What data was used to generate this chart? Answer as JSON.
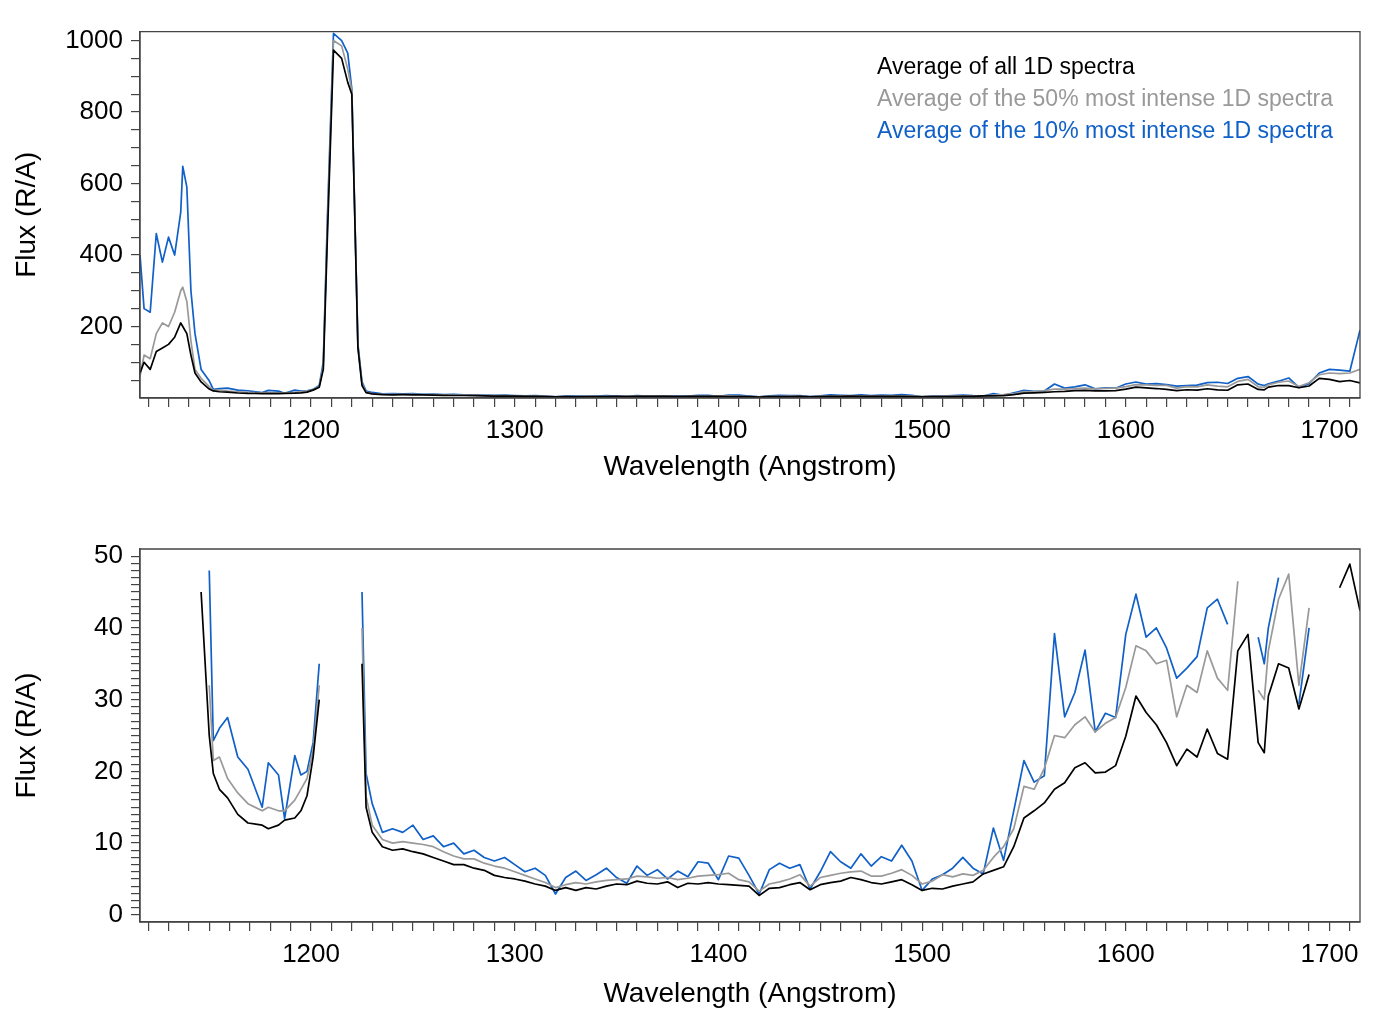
{
  "chart_data": [
    {
      "type": "line",
      "xlabel": "Wavelength (Angstrom)",
      "ylabel": "Flux (R/A)",
      "legend": "top right",
      "xlim": [
        1116,
        1715
      ],
      "ylim": [
        0,
        1025
      ],
      "xticks": [
        {
          "value": 1120,
          "label": null
        },
        {
          "value": 1130,
          "label": null
        },
        {
          "value": 1140,
          "label": null
        },
        {
          "value": 1150,
          "label": null
        },
        {
          "value": 1160,
          "label": null
        },
        {
          "value": 1170,
          "label": null
        },
        {
          "value": 1180,
          "label": null
        },
        {
          "value": 1190,
          "label": null
        },
        1200,
        {
          "value": 1210,
          "label": null
        },
        {
          "value": 1220,
          "label": null
        },
        {
          "value": 1230,
          "label": null
        },
        {
          "value": 1240,
          "label": null
        },
        {
          "value": 1250,
          "label": null
        },
        {
          "value": 1260,
          "label": null
        },
        {
          "value": 1270,
          "label": null
        },
        {
          "value": 1280,
          "label": null
        },
        {
          "value": 1290,
          "label": null
        },
        1300,
        {
          "value": 1310,
          "label": null
        },
        {
          "value": 1320,
          "label": null
        },
        {
          "value": 1330,
          "label": null
        },
        {
          "value": 1340,
          "label": null
        },
        {
          "value": 1350,
          "label": null
        },
        {
          "value": 1360,
          "label": null
        },
        {
          "value": 1370,
          "label": null
        },
        {
          "value": 1380,
          "label": null
        },
        {
          "value": 1390,
          "label": null
        },
        1400,
        {
          "value": 1410,
          "label": null
        },
        {
          "value": 1420,
          "label": null
        },
        {
          "value": 1430,
          "label": null
        },
        {
          "value": 1440,
          "label": null
        },
        {
          "value": 1450,
          "label": null
        },
        {
          "value": 1460,
          "label": null
        },
        {
          "value": 1470,
          "label": null
        },
        {
          "value": 1480,
          "label": null
        },
        {
          "value": 1490,
          "label": null
        },
        1500,
        {
          "value": 1510,
          "label": null
        },
        {
          "value": 1520,
          "label": null
        },
        {
          "value": 1530,
          "label": null
        },
        {
          "value": 1540,
          "label": null
        },
        {
          "value": 1550,
          "label": null
        },
        {
          "value": 1560,
          "label": null
        },
        {
          "value": 1570,
          "label": null
        },
        {
          "value": 1580,
          "label": null
        },
        {
          "value": 1590,
          "label": null
        },
        1600,
        {
          "value": 1610,
          "label": null
        },
        {
          "value": 1620,
          "label": null
        },
        {
          "value": 1630,
          "label": null
        },
        {
          "value": 1640,
          "label": null
        },
        {
          "value": 1650,
          "label": null
        },
        {
          "value": 1660,
          "label": null
        },
        {
          "value": 1670,
          "label": null
        },
        {
          "value": 1680,
          "label": null
        },
        {
          "value": 1690,
          "label": null
        },
        1700,
        {
          "value": 1710,
          "label": null
        }
      ],
      "yticks": [
        {
          "value": 50,
          "label": null
        },
        {
          "value": 100,
          "label": null
        },
        {
          "value": 150,
          "label": null
        },
        200,
        {
          "value": 250,
          "label": null
        },
        {
          "value": 300,
          "label": null
        },
        {
          "value": 350,
          "label": null
        },
        400,
        {
          "value": 450,
          "label": null
        },
        {
          "value": 500,
          "label": null
        },
        {
          "value": 550,
          "label": null
        },
        600,
        {
          "value": 650,
          "label": null
        },
        {
          "value": 700,
          "label": null
        },
        {
          "value": 750,
          "label": null
        },
        800,
        {
          "value": 850,
          "label": null
        },
        {
          "value": 900,
          "label": null
        },
        {
          "value": 950,
          "label": null
        },
        1000
      ],
      "x": [
        1116,
        1118,
        1121,
        1124,
        1127,
        1130,
        1133,
        1136,
        1137,
        1139,
        1141,
        1143,
        1146,
        1150,
        1152,
        1155,
        1159,
        1164,
        1169,
        1176,
        1179,
        1184,
        1187,
        1192,
        1195,
        1198,
        1201,
        1204,
        1206,
        1208,
        1211,
        1215,
        1218,
        1220,
        1223,
        1225,
        1227,
        1230,
        1235,
        1240,
        1245,
        1250,
        1255,
        1260,
        1265,
        1270,
        1275,
        1280,
        1285,
        1290,
        1295,
        1300,
        1305,
        1310,
        1315,
        1320,
        1325,
        1330,
        1335,
        1340,
        1345,
        1350,
        1355,
        1360,
        1365,
        1370,
        1375,
        1380,
        1385,
        1390,
        1395,
        1400,
        1405,
        1410,
        1415,
        1420,
        1425,
        1430,
        1435,
        1440,
        1445,
        1450,
        1455,
        1460,
        1465,
        1470,
        1475,
        1480,
        1485,
        1490,
        1495,
        1500,
        1505,
        1510,
        1515,
        1520,
        1525,
        1530,
        1535,
        1540,
        1545,
        1550,
        1555,
        1560,
        1565,
        1570,
        1575,
        1580,
        1585,
        1590,
        1595,
        1600,
        1605,
        1610,
        1615,
        1620,
        1625,
        1630,
        1635,
        1640,
        1645,
        1650,
        1655,
        1660,
        1665,
        1668,
        1670,
        1675,
        1680,
        1685,
        1690,
        1695,
        1700,
        1705,
        1710,
        1715
      ],
      "series": [
        {
          "name": "Average of all 1D spectra",
          "color": "#000000",
          "values": [
            70,
            100,
            80,
            130,
            140,
            150,
            170,
            210,
            200,
            180,
            120,
            70,
            45,
            25,
            19.7,
            17.5,
            16.3,
            14,
            12.8,
            12.5,
            12,
            12.5,
            13.2,
            13.5,
            14.5,
            16.6,
            22,
            30,
            80,
            450,
            973,
            950,
            883,
            850,
            140,
            35,
            15,
            11.5,
            9.5,
            9,
            9.2,
            8.8,
            8.5,
            8,
            7.5,
            7,
            7,
            6.5,
            6.2,
            5.5,
            5.2,
            5,
            4.7,
            4.3,
            4,
            3.4,
            3.8,
            3.4,
            3.8,
            3.6,
            4,
            4.3,
            4.2,
            4.7,
            4.4,
            4.3,
            4.6,
            3.8,
            4.4,
            4.3,
            4.5,
            4.3,
            4.2,
            4.1,
            4,
            2.7,
            3.7,
            3.8,
            4.2,
            4.5,
            3.5,
            4.2,
            4.5,
            4.7,
            5.2,
            4.9,
            4.5,
            4.3,
            4.6,
            4.9,
            4.2,
            3.4,
            3.7,
            3.6,
            4,
            4.3,
            4.6,
            5.7,
            6.2,
            6.7,
            9.5,
            13.5,
            14.5,
            15.6,
            17.5,
            18.4,
            20.5,
            21.2,
            19.8,
            19.9,
            20.8,
            24.9,
            30.5,
            28.2,
            26.5,
            24,
            20.8,
            23.1,
            22,
            25.9,
            22.5,
            21.7,
            36.8,
            39.1,
            24,
            22.6,
            30.5,
            35,
            34.4,
            28.7,
            33.5,
            55,
            52,
            45.6,
            48.9,
            42.4
          ]
        },
        {
          "name": "Average of the 50% most intense 1D spectra",
          "color": "#999999",
          "values": [
            60,
            120,
            110,
            180,
            210,
            200,
            240,
            300,
            310,
            270,
            160,
            80,
            55,
            32,
            21.5,
            22,
            19,
            17,
            15.5,
            14.5,
            15,
            14.5,
            14.5,
            16,
            17.5,
            19,
            23,
            32,
            90,
            480,
            1000,
            985,
            920,
            860,
            145,
            40,
            16.5,
            12.5,
            10.5,
            10,
            10.2,
            10,
            9.8,
            9.5,
            8.8,
            8.2,
            7.8,
            7.8,
            7.2,
            6.8,
            6.5,
            6,
            5.5,
            5,
            4.5,
            3.8,
            4.2,
            4.5,
            4.3,
            4.6,
            4.8,
            4.9,
            5,
            5.4,
            5.3,
            5.1,
            5.2,
            4.9,
            5.1,
            5.4,
            5.5,
            5.6,
            5.8,
            4.9,
            4.6,
            3.3,
            4.3,
            4.6,
            5,
            5.6,
            4,
            5.2,
            5.5,
            5.8,
            6,
            6.1,
            5.4,
            5.4,
            5.8,
            6.3,
            5.5,
            4.3,
            4.7,
            5.6,
            5.3,
            5.7,
            5.5,
            6.2,
            8,
            9.5,
            12,
            17.9,
            17.5,
            20.4,
            25,
            24.7,
            26.5,
            27.6,
            25.5,
            26.7,
            27.5,
            31.7,
            37.5,
            36.8,
            35,
            35.5,
            27.6,
            32,
            31,
            36.8,
            33,
            31.3,
            46.5,
            52,
            31.3,
            30,
            36.8,
            44,
            47.5,
            32,
            42.8,
            65,
            70,
            68,
            70,
            80
          ]
        },
        {
          "name": "Average of the 10% most intense 1D spectra",
          "color": "#1060c8",
          "values": [
            400,
            250,
            240,
            460,
            380,
            450,
            400,
            520,
            648,
            590,
            300,
            180,
            80,
            48,
            24.3,
            26,
            27.5,
            22,
            20.3,
            15,
            21.2,
            19.5,
            13.4,
            22.2,
            19.5,
            20,
            24,
            35,
            100,
            504,
            1020,
            1000,
            965,
            865,
            150,
            45,
            19.7,
            15.5,
            11.5,
            12,
            11.5,
            12.5,
            10.5,
            11,
            9.5,
            10,
            8.5,
            9,
            8,
            7.5,
            8,
            7,
            6,
            6.5,
            5.5,
            2.9,
            5.2,
            6.1,
            4.8,
            5.6,
            6.5,
            5.2,
            4.4,
            6.8,
            5.5,
            6.3,
            5,
            6.1,
            5.3,
            7.4,
            7.2,
            4.9,
            8.2,
            7.9,
            5.5,
            2.9,
            6.3,
            7.2,
            6.5,
            7,
            3.6,
            6,
            8.8,
            7.4,
            6.5,
            8.5,
            6.8,
            8.1,
            7.5,
            9.7,
            7.5,
            3.4,
            5,
            5.6,
            6.5,
            8,
            6.5,
            5.7,
            12.1,
            7.6,
            14.5,
            21.5,
            18.5,
            19.4,
            39.2,
            27.6,
            31,
            36.9,
            25.5,
            28.1,
            27.5,
            39.1,
            44.7,
            38.7,
            40,
            37.2,
            33,
            34.4,
            36,
            42.8,
            44,
            40.5,
            55,
            60,
            38.7,
            35,
            40,
            47,
            56,
            29.4,
            40,
            70,
            80,
            78,
            75,
            190
          ]
        }
      ]
    },
    {
      "type": "line",
      "xlabel": "Wavelength (Angstrom)",
      "ylabel": "Flux (R/A)",
      "xlim": [
        1116,
        1715
      ],
      "ylim": [
        -1,
        51
      ],
      "xticks": [
        {
          "value": 1120,
          "label": null
        },
        {
          "value": 1130,
          "label": null
        },
        {
          "value": 1140,
          "label": null
        },
        {
          "value": 1150,
          "label": null
        },
        {
          "value": 1160,
          "label": null
        },
        {
          "value": 1170,
          "label": null
        },
        {
          "value": 1180,
          "label": null
        },
        {
          "value": 1190,
          "label": null
        },
        1200,
        {
          "value": 1210,
          "label": null
        },
        {
          "value": 1220,
          "label": null
        },
        {
          "value": 1230,
          "label": null
        },
        {
          "value": 1240,
          "label": null
        },
        {
          "value": 1250,
          "label": null
        },
        {
          "value": 1260,
          "label": null
        },
        {
          "value": 1270,
          "label": null
        },
        {
          "value": 1280,
          "label": null
        },
        {
          "value": 1290,
          "label": null
        },
        1300,
        {
          "value": 1310,
          "label": null
        },
        {
          "value": 1320,
          "label": null
        },
        {
          "value": 1330,
          "label": null
        },
        {
          "value": 1340,
          "label": null
        },
        {
          "value": 1350,
          "label": null
        },
        {
          "value": 1360,
          "label": null
        },
        {
          "value": 1370,
          "label": null
        },
        {
          "value": 1380,
          "label": null
        },
        {
          "value": 1390,
          "label": null
        },
        1400,
        {
          "value": 1410,
          "label": null
        },
        {
          "value": 1420,
          "label": null
        },
        {
          "value": 1430,
          "label": null
        },
        {
          "value": 1440,
          "label": null
        },
        {
          "value": 1450,
          "label": null
        },
        {
          "value": 1460,
          "label": null
        },
        {
          "value": 1470,
          "label": null
        },
        {
          "value": 1480,
          "label": null
        },
        {
          "value": 1490,
          "label": null
        },
        1500,
        {
          "value": 1510,
          "label": null
        },
        {
          "value": 1520,
          "label": null
        },
        {
          "value": 1530,
          "label": null
        },
        {
          "value": 1540,
          "label": null
        },
        {
          "value": 1550,
          "label": null
        },
        {
          "value": 1560,
          "label": null
        },
        {
          "value": 1570,
          "label": null
        },
        {
          "value": 1580,
          "label": null
        },
        {
          "value": 1590,
          "label": null
        },
        1600,
        {
          "value": 1610,
          "label": null
        },
        {
          "value": 1620,
          "label": null
        },
        {
          "value": 1630,
          "label": null
        },
        {
          "value": 1640,
          "label": null
        },
        {
          "value": 1650,
          "label": null
        },
        {
          "value": 1660,
          "label": null
        },
        {
          "value": 1670,
          "label": null
        },
        {
          "value": 1680,
          "label": null
        },
        {
          "value": 1690,
          "label": null
        },
        1700,
        {
          "value": 1710,
          "label": null
        }
      ],
      "yticks": [
        0,
        {
          "value": 1,
          "label": null
        },
        {
          "value": 2,
          "label": null
        },
        {
          "value": 3,
          "label": null
        },
        {
          "value": 4,
          "label": null
        },
        {
          "value": 5,
          "label": null
        },
        {
          "value": 6,
          "label": null
        },
        {
          "value": 7,
          "label": null
        },
        {
          "value": 8,
          "label": null
        },
        {
          "value": 9,
          "label": null
        },
        10,
        {
          "value": 11,
          "label": null
        },
        {
          "value": 12,
          "label": null
        },
        {
          "value": 13,
          "label": null
        },
        {
          "value": 14,
          "label": null
        },
        {
          "value": 15,
          "label": null
        },
        {
          "value": 16,
          "label": null
        },
        {
          "value": 17,
          "label": null
        },
        {
          "value": 18,
          "label": null
        },
        {
          "value": 19,
          "label": null
        },
        20,
        {
          "value": 21,
          "label": null
        },
        {
          "value": 22,
          "label": null
        },
        {
          "value": 23,
          "label": null
        },
        {
          "value": 24,
          "label": null
        },
        {
          "value": 25,
          "label": null
        },
        {
          "value": 26,
          "label": null
        },
        {
          "value": 27,
          "label": null
        },
        {
          "value": 28,
          "label": null
        },
        {
          "value": 29,
          "label": null
        },
        30,
        {
          "value": 31,
          "label": null
        },
        {
          "value": 32,
          "label": null
        },
        {
          "value": 33,
          "label": null
        },
        {
          "value": 34,
          "label": null
        },
        {
          "value": 35,
          "label": null
        },
        {
          "value": 36,
          "label": null
        },
        {
          "value": 37,
          "label": null
        },
        {
          "value": 38,
          "label": null
        },
        {
          "value": 39,
          "label": null
        },
        40,
        {
          "value": 41,
          "label": null
        },
        {
          "value": 42,
          "label": null
        },
        {
          "value": 43,
          "label": null
        },
        {
          "value": 44,
          "label": null
        },
        {
          "value": 45,
          "label": null
        },
        {
          "value": 46,
          "label": null
        },
        {
          "value": 47,
          "label": null
        },
        {
          "value": 48,
          "label": null
        },
        {
          "value": 49,
          "label": null
        },
        50
      ],
      "series": [
        {
          "color": "#000000",
          "x": [
            1146,
            1150,
            1152,
            1155,
            1159,
            1164,
            1169,
            1176,
            1179,
            1184,
            1187,
            1192,
            1195,
            1198,
            1201,
            1204
          ],
          "values": [
            45,
            25,
            19.7,
            17.5,
            16.3,
            14,
            12.8,
            12.5,
            12,
            12.5,
            13.2,
            13.5,
            14.5,
            16.6,
            22,
            30
          ]
        },
        {
          "color": "#000000",
          "x": [
            1225,
            1227,
            1230,
            1235,
            1240,
            1245,
            1250,
            1255,
            1260,
            1265,
            1270,
            1275,
            1280,
            1285,
            1290,
            1295,
            1300,
            1305,
            1310,
            1315,
            1320,
            1325,
            1330,
            1335,
            1340,
            1345,
            1350,
            1355,
            1360,
            1365,
            1370,
            1375,
            1380,
            1385,
            1390,
            1395,
            1400,
            1405,
            1410,
            1415,
            1420,
            1425,
            1430,
            1435,
            1440,
            1445,
            1450,
            1455,
            1460,
            1465,
            1470,
            1475,
            1480,
            1485,
            1490,
            1495,
            1500,
            1505,
            1510,
            1515,
            1520,
            1525,
            1530,
            1535,
            1540,
            1545,
            1550,
            1555,
            1560,
            1565,
            1570,
            1575,
            1580,
            1585,
            1590,
            1595,
            1600,
            1605,
            1610,
            1615,
            1620,
            1625,
            1630,
            1635,
            1640,
            1645,
            1650,
            1655,
            1660,
            1665,
            1668,
            1670,
            1675,
            1680,
            1685,
            1690
          ],
          "values": [
            35,
            15,
            11.5,
            9.5,
            9,
            9.2,
            8.8,
            8.5,
            8,
            7.5,
            7,
            7,
            6.5,
            6.2,
            5.5,
            5.2,
            5,
            4.7,
            4.3,
            4,
            3.4,
            3.8,
            3.4,
            3.8,
            3.6,
            4,
            4.3,
            4.2,
            4.7,
            4.4,
            4.3,
            4.6,
            3.8,
            4.4,
            4.3,
            4.5,
            4.3,
            4.2,
            4.1,
            4,
            2.7,
            3.7,
            3.8,
            4.2,
            4.5,
            3.5,
            4.2,
            4.5,
            4.7,
            5.2,
            4.9,
            4.5,
            4.3,
            4.6,
            4.9,
            4.2,
            3.4,
            3.7,
            3.6,
            4,
            4.3,
            4.6,
            5.7,
            6.2,
            6.7,
            9.5,
            13.5,
            14.5,
            15.6,
            17.5,
            18.4,
            20.5,
            21.2,
            19.8,
            19.9,
            20.8,
            24.9,
            30.5,
            28.2,
            26.5,
            24,
            20.8,
            23.1,
            22,
            25.9,
            22.5,
            21.7,
            36.8,
            39.1,
            24,
            22.6,
            30.5,
            35,
            34.4,
            28.7,
            33.5
          ]
        },
        {
          "color": "#000000",
          "x": [
            1705,
            1710,
            1715
          ],
          "values": [
            45.6,
            48.9,
            42.4
          ]
        },
        {
          "color": "#999999",
          "x": [
            1150,
            1152,
            1155,
            1159,
            1164,
            1169,
            1176,
            1179,
            1184,
            1187,
            1192,
            1195,
            1198,
            1201,
            1204
          ],
          "values": [
            32,
            21.5,
            22,
            19,
            17,
            15.5,
            14.5,
            15,
            14.5,
            14.5,
            16,
            17.5,
            19,
            23,
            32
          ]
        },
        {
          "color": "#999999",
          "x": [
            1225,
            1227,
            1230,
            1235,
            1240,
            1245,
            1250,
            1255,
            1260,
            1265,
            1270,
            1275,
            1280,
            1285,
            1290,
            1295,
            1300,
            1305,
            1310,
            1315,
            1320,
            1325,
            1330,
            1335,
            1340,
            1345,
            1350,
            1355,
            1360,
            1365,
            1370,
            1375,
            1380,
            1385,
            1390,
            1395,
            1400,
            1405,
            1410,
            1415,
            1420,
            1425,
            1430,
            1435,
            1440,
            1445,
            1450,
            1455,
            1460,
            1465,
            1470,
            1475,
            1480,
            1485,
            1490,
            1495,
            1500,
            1505,
            1510,
            1515,
            1520,
            1525,
            1530,
            1535,
            1540,
            1545,
            1550,
            1555,
            1560,
            1565,
            1570,
            1575,
            1580,
            1585,
            1590,
            1595,
            1600,
            1605,
            1610,
            1615,
            1620,
            1625,
            1630,
            1635,
            1640,
            1645,
            1650,
            1655
          ],
          "values": [
            40,
            16.5,
            12.5,
            10.5,
            10,
            10.2,
            10,
            9.8,
            9.5,
            8.8,
            8.2,
            7.8,
            7.8,
            7.2,
            6.8,
            6.5,
            6,
            5.5,
            5,
            4.5,
            3.8,
            4.2,
            4.5,
            4.3,
            4.6,
            4.8,
            4.9,
            5,
            5.4,
            5.3,
            5.1,
            5.2,
            4.9,
            5.1,
            5.4,
            5.5,
            5.6,
            5.8,
            4.9,
            4.6,
            3.3,
            4.3,
            4.6,
            5,
            5.6,
            4,
            5.2,
            5.5,
            5.8,
            6,
            6.1,
            5.4,
            5.4,
            5.8,
            6.3,
            5.5,
            4.3,
            4.7,
            5.6,
            5.3,
            5.7,
            5.5,
            6.2,
            8,
            9.5,
            12,
            17.9,
            17.5,
            20.4,
            25,
            24.7,
            26.5,
            27.6,
            25.5,
            26.7,
            27.5,
            31.7,
            37.5,
            36.8,
            35,
            35.5,
            27.6,
            32,
            31,
            36.8,
            33,
            31.3,
            46.5
          ]
        },
        {
          "color": "#999999",
          "x": [
            1665,
            1668,
            1670,
            1675,
            1680,
            1685,
            1690
          ],
          "values": [
            31.3,
            30,
            36.8,
            44,
            47.5,
            32,
            42.8
          ]
        },
        {
          "color": "#1060c8",
          "x": [
            1150,
            1152,
            1155,
            1159,
            1164,
            1169,
            1176,
            1179,
            1184,
            1187,
            1192,
            1195,
            1198,
            1201,
            1204
          ],
          "values": [
            48,
            24.3,
            26,
            27.5,
            22,
            20.3,
            15,
            21.2,
            19.5,
            13.4,
            22.2,
            19.5,
            20,
            24,
            35
          ]
        },
        {
          "color": "#1060c8",
          "x": [
            1225,
            1227,
            1230,
            1235,
            1240,
            1245,
            1250,
            1255,
            1260,
            1265,
            1270,
            1275,
            1280,
            1285,
            1290,
            1295,
            1300,
            1305,
            1310,
            1315,
            1320,
            1325,
            1330,
            1335,
            1340,
            1345,
            1350,
            1355,
            1360,
            1365,
            1370,
            1375,
            1380,
            1385,
            1390,
            1395,
            1400,
            1405,
            1410,
            1415,
            1420,
            1425,
            1430,
            1435,
            1440,
            1445,
            1450,
            1455,
            1460,
            1465,
            1470,
            1475,
            1480,
            1485,
            1490,
            1495,
            1500,
            1505,
            1510,
            1515,
            1520,
            1525,
            1530,
            1535,
            1540,
            1545,
            1550,
            1555,
            1560,
            1565,
            1570,
            1575,
            1580,
            1585,
            1590,
            1595,
            1600,
            1605,
            1610,
            1615,
            1620,
            1625,
            1630,
            1635,
            1640,
            1645,
            1650
          ],
          "values": [
            45,
            19.7,
            15.5,
            11.5,
            12,
            11.5,
            12.5,
            10.5,
            11,
            9.5,
            10,
            8.5,
            9,
            8,
            7.5,
            8,
            7,
            6,
            6.5,
            5.5,
            2.9,
            5.2,
            6.1,
            4.8,
            5.6,
            6.5,
            5.2,
            4.4,
            6.8,
            5.5,
            6.3,
            5,
            6.1,
            5.3,
            7.4,
            7.2,
            4.9,
            8.2,
            7.9,
            5.5,
            2.9,
            6.3,
            7.2,
            6.5,
            7,
            3.6,
            6,
            8.8,
            7.4,
            6.5,
            8.5,
            6.8,
            8.1,
            7.5,
            9.7,
            7.5,
            3.4,
            5,
            5.6,
            6.5,
            8,
            6.5,
            5.7,
            12.1,
            7.6,
            14.5,
            21.5,
            18.5,
            19.4,
            39.2,
            27.6,
            31,
            36.9,
            25.5,
            28.1,
            27.5,
            39.1,
            44.7,
            38.7,
            40,
            37.2,
            33,
            34.4,
            36,
            42.8,
            44,
            40.5
          ]
        },
        {
          "color": "#1060c8",
          "x": [
            1665,
            1668,
            1670,
            1675
          ],
          "values": [
            38.7,
            35,
            40,
            47
          ]
        },
        {
          "color": "#1060c8",
          "x": [
            1685,
            1690
          ],
          "values": [
            29.4,
            40
          ]
        }
      ]
    }
  ]
}
